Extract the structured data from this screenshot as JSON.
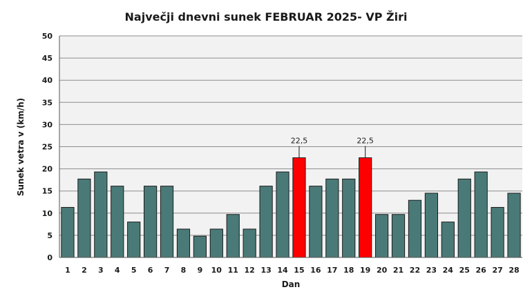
{
  "chart_data": {
    "type": "bar",
    "title": "Največji dnevni sunek FEBRUAR 2025- VP Žiri",
    "xlabel": "Dan",
    "ylabel": "Sunek vetra v (km/h)",
    "ylim": [
      0,
      50
    ],
    "yticks": [
      0,
      5,
      10,
      15,
      20,
      25,
      30,
      35,
      40,
      45,
      50
    ],
    "grid": true,
    "legend": "none",
    "categories": [
      "1",
      "2",
      "3",
      "4",
      "5",
      "6",
      "7",
      "8",
      "9",
      "10",
      "11",
      "12",
      "13",
      "14",
      "15",
      "16",
      "17",
      "18",
      "19",
      "20",
      "21",
      "22",
      "23",
      "24",
      "25",
      "26",
      "27",
      "28"
    ],
    "values": [
      11.3,
      17.7,
      19.3,
      16.1,
      8.0,
      16.1,
      16.1,
      6.4,
      4.8,
      6.4,
      9.7,
      6.4,
      16.1,
      19.3,
      22.5,
      16.1,
      17.7,
      17.7,
      22.5,
      9.7,
      9.7,
      12.9,
      14.5,
      8.0,
      17.7,
      19.3,
      11.3,
      14.5
    ],
    "highlighted": [
      "15",
      "19"
    ],
    "data_labels": [
      {
        "category": "15",
        "text": "22,5"
      },
      {
        "category": "19",
        "text": "22,5"
      }
    ],
    "colors": {
      "bar": "#4a7a78",
      "bar_highlight": "#ff0000",
      "plot_background": "#f2f2f2",
      "grid": "#8c8c8c"
    }
  }
}
